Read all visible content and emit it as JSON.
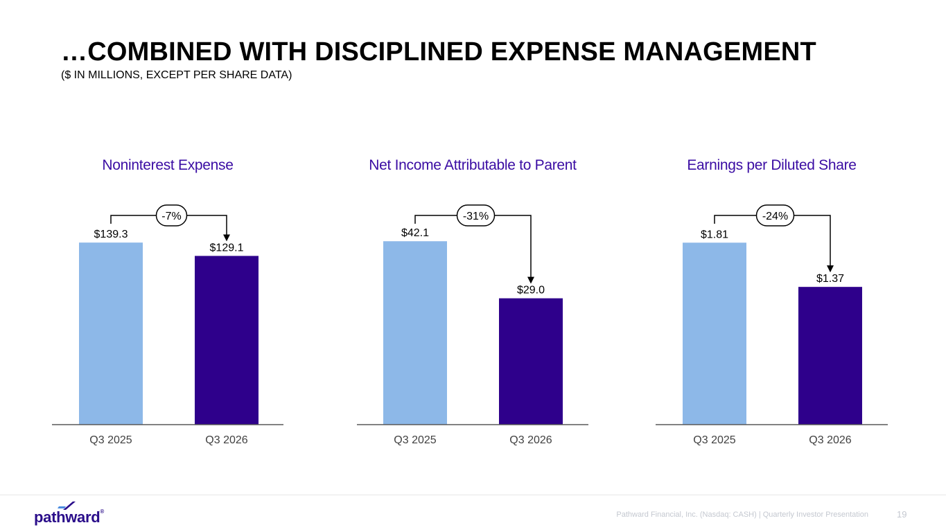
{
  "header": {
    "title": "…COMBINED WITH DISCIPLINED EXPENSE MANAGEMENT",
    "subtitle": "($ IN MILLIONS, EXCEPT PER SHARE DATA)"
  },
  "footer": {
    "company_text": "Pathward Financial, Inc. (Nasdaq: CASH) | Quarterly Investor Presentation",
    "page_number": "19",
    "logo_text": "pathward",
    "logo_mark": "®"
  },
  "colors": {
    "prior": "#8db8e8",
    "current": "#2e008b",
    "title_accent": "#3a0ca3"
  },
  "chart_data": [
    {
      "type": "bar",
      "title": "Noninterest Expense",
      "categories": [
        "Q3 2025",
        "Q3 2026"
      ],
      "values": [
        139.3,
        129.1
      ],
      "labels": [
        "$139.3",
        "$129.1"
      ],
      "change_label": "-7%",
      "ylim": [
        0,
        150
      ]
    },
    {
      "type": "bar",
      "title": "Net Income Attributable to Parent",
      "categories": [
        "Q3 2025",
        "Q3 2026"
      ],
      "values": [
        42.1,
        29.0
      ],
      "labels": [
        "$42.1",
        "$29.0"
      ],
      "change_label": "-31%",
      "ylim": [
        0,
        45
      ]
    },
    {
      "type": "bar",
      "title": "Earnings per Diluted Share",
      "categories": [
        "Q3 2025",
        "Q3 2026"
      ],
      "values": [
        1.81,
        1.37
      ],
      "labels": [
        "$1.81",
        "$1.37"
      ],
      "change_label": "-24%",
      "ylim": [
        0,
        1.95
      ]
    }
  ]
}
